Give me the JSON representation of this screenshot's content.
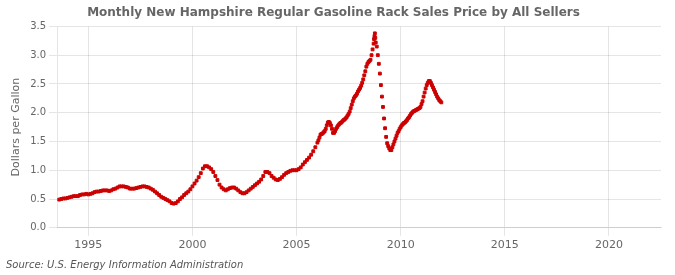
{
  "chart_data": {
    "type": "scatter",
    "title": "Monthly New Hampshire Regular Gasoline Rack Sales Price by All Sellers",
    "y_label": "Dollars per Gallon",
    "annotations": [
      "Source: U.S. Energy Information Administration"
    ],
    "color": "#cc0000",
    "marker": "square",
    "grid": true,
    "xlim": [
      1993.5,
      2022.5
    ],
    "xticks": [
      1995,
      2000,
      2005,
      2010,
      2015,
      2020
    ],
    "ylim": [
      0.0,
      3.5
    ],
    "yticks": [
      {
        "value": 0.0,
        "label": "0.0"
      },
      0.5,
      {
        "value": 1.0,
        "label": "1.0"
      },
      1.5,
      {
        "value": 2.0,
        "label": "2.0"
      },
      2.5,
      {
        "value": 3.0,
        "label": "3.0"
      },
      3.5
    ],
    "x": [
      1993.6,
      1993.7,
      1993.8,
      1993.9,
      1994.0,
      1994.1,
      1994.2,
      1994.3,
      1994.4,
      1994.5,
      1994.6,
      1994.7,
      1994.8,
      1994.9,
      1995.0,
      1995.1,
      1995.2,
      1995.3,
      1995.4,
      1995.5,
      1995.6,
      1995.7,
      1995.8,
      1995.9,
      1996.0,
      1996.1,
      1996.2,
      1996.3,
      1996.4,
      1996.5,
      1996.6,
      1996.7,
      1996.8,
      1996.9,
      1997.0,
      1997.1,
      1997.2,
      1997.3,
      1997.4,
      1997.5,
      1997.6,
      1997.7,
      1997.8,
      1997.9,
      1998.0,
      1998.1,
      1998.2,
      1998.3,
      1998.4,
      1998.5,
      1998.6,
      1998.7,
      1998.8,
      1998.9,
      1999.0,
      1999.1,
      1999.2,
      1999.3,
      1999.4,
      1999.5,
      1999.6,
      1999.7,
      1999.8,
      1999.9,
      2000.0,
      2000.1,
      2000.2,
      2000.3,
      2000.4,
      2000.5,
      2000.6,
      2000.7,
      2000.8,
      2000.9,
      2001.0,
      2001.1,
      2001.2,
      2001.3,
      2001.4,
      2001.5,
      2001.6,
      2001.7,
      2001.8,
      2001.9,
      2002.0,
      2002.1,
      2002.2,
      2002.3,
      2002.4,
      2002.5,
      2002.6,
      2002.7,
      2002.8,
      2002.9,
      2003.0,
      2003.1,
      2003.2,
      2003.3,
      2003.4,
      2003.5,
      2003.6,
      2003.7,
      2003.8,
      2003.9,
      2004.0,
      2004.1,
      2004.2,
      2004.3,
      2004.4,
      2004.5,
      2004.6,
      2004.7,
      2004.8,
      2004.9,
      2005.0,
      2005.1,
      2005.2,
      2005.3,
      2005.4,
      2005.5,
      2005.6,
      2005.7,
      2005.8,
      2005.9,
      2006.0,
      2006.05,
      2006.1,
      2006.15,
      2006.2,
      2006.25,
      2006.3,
      2006.35,
      2006.4,
      2006.45,
      2006.5,
      2006.55,
      2006.6,
      2006.65,
      2006.7,
      2006.75,
      2006.8,
      2006.85,
      2006.9,
      2006.95,
      2007.0,
      2007.05,
      2007.1,
      2007.15,
      2007.2,
      2007.25,
      2007.3,
      2007.35,
      2007.4,
      2007.45,
      2007.5,
      2007.55,
      2007.6,
      2007.65,
      2007.7,
      2007.75,
      2007.8,
      2007.85,
      2007.9,
      2007.95,
      2008.0,
      2008.05,
      2008.1,
      2008.15,
      2008.2,
      2008.25,
      2008.3,
      2008.35,
      2008.4,
      2008.45,
      2008.5,
      2008.55,
      2008.6,
      2008.65,
      2008.7,
      2008.72,
      2008.74,
      2008.76,
      2008.78,
      2008.8,
      2008.85,
      2008.9,
      2008.95,
      2009.0,
      2009.05,
      2009.1,
      2009.15,
      2009.2,
      2009.25,
      2009.3,
      2009.35,
      2009.4,
      2009.45,
      2009.5,
      2009.55,
      2009.6,
      2009.65,
      2009.7,
      2009.75,
      2009.8,
      2009.85,
      2009.9,
      2009.95,
      2010.0,
      2010.05,
      2010.1,
      2010.15,
      2010.2,
      2010.25,
      2010.3,
      2010.35,
      2010.4,
      2010.45,
      2010.5,
      2010.55,
      2010.6,
      2010.65,
      2010.7,
      2010.75,
      2010.8,
      2010.85,
      2010.9,
      2010.95,
      2011.0,
      2011.05,
      2011.1,
      2011.15,
      2011.2,
      2011.25,
      2011.3,
      2011.35,
      2011.4,
      2011.45,
      2011.5,
      2011.55,
      2011.6,
      2011.65,
      2011.7,
      2011.75,
      2011.8,
      2011.85,
      2011.9,
      2011.95
    ],
    "values": [
      0.49,
      0.5,
      0.51,
      0.51,
      0.52,
      0.53,
      0.54,
      0.55,
      0.55,
      0.55,
      0.57,
      0.58,
      0.58,
      0.59,
      0.58,
      0.59,
      0.6,
      0.62,
      0.63,
      0.63,
      0.64,
      0.65,
      0.65,
      0.65,
      0.64,
      0.65,
      0.67,
      0.68,
      0.7,
      0.72,
      0.72,
      0.72,
      0.71,
      0.7,
      0.68,
      0.68,
      0.68,
      0.69,
      0.7,
      0.71,
      0.72,
      0.72,
      0.71,
      0.7,
      0.68,
      0.66,
      0.63,
      0.6,
      0.57,
      0.54,
      0.52,
      0.5,
      0.48,
      0.46,
      0.43,
      0.42,
      0.43,
      0.46,
      0.5,
      0.53,
      0.57,
      0.6,
      0.63,
      0.67,
      0.72,
      0.77,
      0.82,
      0.88,
      0.95,
      1.03,
      1.07,
      1.07,
      1.05,
      1.02,
      0.97,
      0.9,
      0.83,
      0.75,
      0.7,
      0.67,
      0.65,
      0.67,
      0.69,
      0.7,
      0.7,
      0.68,
      0.65,
      0.62,
      0.6,
      0.6,
      0.62,
      0.65,
      0.68,
      0.71,
      0.74,
      0.77,
      0.8,
      0.84,
      0.9,
      0.97,
      0.97,
      0.95,
      0.9,
      0.87,
      0.84,
      0.83,
      0.85,
      0.88,
      0.92,
      0.95,
      0.97,
      0.99,
      1.0,
      1.0,
      1.0,
      1.02,
      1.05,
      1.1,
      1.14,
      1.18,
      1.22,
      1.27,
      1.33,
      1.4,
      1.48,
      1.52,
      1.57,
      1.62,
      1.63,
      1.64,
      1.66,
      1.68,
      1.72,
      1.78,
      1.83,
      1.84,
      1.82,
      1.78,
      1.72,
      1.65,
      1.65,
      1.68,
      1.72,
      1.75,
      1.78,
      1.8,
      1.82,
      1.83,
      1.85,
      1.87,
      1.88,
      1.9,
      1.92,
      1.95,
      1.98,
      2.02,
      2.08,
      2.14,
      2.2,
      2.25,
      2.28,
      2.3,
      2.33,
      2.37,
      2.4,
      2.43,
      2.47,
      2.52,
      2.58,
      2.65,
      2.72,
      2.8,
      2.85,
      2.88,
      2.9,
      2.92,
      3.0,
      3.1,
      3.2,
      3.28,
      3.33,
      3.38,
      3.3,
      3.22,
      3.15,
      3.0,
      2.85,
      2.68,
      2.48,
      2.28,
      2.1,
      1.9,
      1.73,
      1.58,
      1.47,
      1.42,
      1.38,
      1.35,
      1.35,
      1.4,
      1.45,
      1.5,
      1.55,
      1.6,
      1.65,
      1.68,
      1.72,
      1.75,
      1.78,
      1.8,
      1.82,
      1.83,
      1.85,
      1.87,
      1.9,
      1.92,
      1.95,
      1.98,
      2.0,
      2.02,
      2.03,
      2.04,
      2.05,
      2.06,
      2.07,
      2.08,
      2.1,
      2.15,
      2.2,
      2.28,
      2.35,
      2.42,
      2.48,
      2.52,
      2.55,
      2.55,
      2.52,
      2.48,
      2.44,
      2.4,
      2.36,
      2.32,
      2.28,
      2.25,
      2.22,
      2.2,
      2.18
    ]
  }
}
